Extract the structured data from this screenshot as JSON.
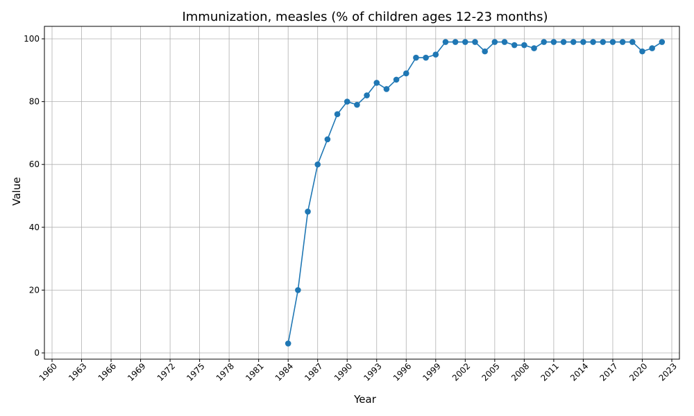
{
  "chart_data": {
    "type": "line",
    "title": "Immunization, measles (% of children ages 12-23 months)",
    "xlabel": "Year",
    "ylabel": "Value",
    "xlim": [
      1960,
      2023
    ],
    "ylim": [
      0,
      100
    ],
    "grid": true,
    "x_ticks": [
      1960,
      1963,
      1966,
      1969,
      1972,
      1975,
      1978,
      1981,
      1984,
      1987,
      1990,
      1993,
      1996,
      1999,
      2002,
      2005,
      2008,
      2011,
      2014,
      2017,
      2020,
      2023
    ],
    "x_tick_labels": [
      "1960",
      "1963",
      "1966",
      "1969",
      "1972",
      "1975",
      "1978",
      "1981",
      "1984",
      "1987",
      "1990",
      "1993",
      "1996",
      "1999",
      "2002",
      "2005",
      "2008",
      "2011",
      "2014",
      "2017",
      "2020",
      "2023"
    ],
    "y_ticks": [
      0,
      20,
      40,
      60,
      80,
      100
    ],
    "y_tick_labels": [
      "0",
      "20",
      "40",
      "60",
      "80",
      "100"
    ],
    "series": [
      {
        "color": "#1f77b4",
        "x": [
          1984,
          1985,
          1986,
          1987,
          1988,
          1989,
          1990,
          1991,
          1992,
          1993,
          1994,
          1995,
          1996,
          1997,
          1998,
          1999,
          2000,
          2001,
          2002,
          2003,
          2004,
          2005,
          2006,
          2007,
          2008,
          2009,
          2010,
          2011,
          2012,
          2013,
          2014,
          2015,
          2016,
          2017,
          2018,
          2019,
          2020,
          2021,
          2022
        ],
        "y": [
          3,
          20,
          45,
          60,
          68,
          76,
          80,
          79,
          82,
          86,
          84,
          87,
          89,
          94,
          94,
          95,
          99,
          99,
          99,
          99,
          96,
          99,
          99,
          98,
          98,
          97,
          99,
          99,
          99,
          99,
          99,
          99,
          99,
          99,
          99,
          99,
          96,
          97,
          99
        ]
      }
    ]
  }
}
